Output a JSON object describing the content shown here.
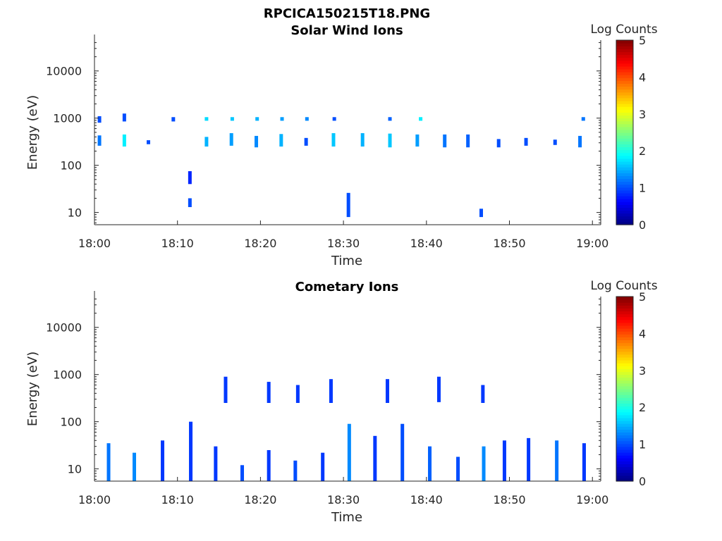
{
  "figure": {
    "title": "RPCICA150215T18.PNG"
  },
  "chart_data": [
    {
      "type": "heatmap",
      "title": "Solar Wind Ions",
      "xlabel": "Time",
      "ylabel": "Energy (eV)",
      "x_tick_labels": [
        "18:00",
        "18:10",
        "18:20",
        "18:30",
        "18:40",
        "18:50",
        "19:00"
      ],
      "y_tick_labels": [
        "10",
        "100",
        "1000",
        "10000"
      ],
      "y_scale": "log",
      "xlim_minutes": [
        0,
        61
      ],
      "ylim": [
        5.5,
        45000
      ],
      "colorbar": {
        "label": "Log Counts",
        "range": [
          0,
          5
        ],
        "ticks": [
          "0",
          "1",
          "2",
          "3",
          "4",
          "5"
        ],
        "colormap": "jet"
      },
      "series": [
        {
          "bands": [
            {
              "t": 0.6,
              "lo": 260,
              "hi": 430,
              "v": 1.2
            },
            {
              "t": 0.6,
              "lo": 800,
              "hi": 1100,
              "v": 1.0
            },
            {
              "t": 3.6,
              "lo": 250,
              "hi": 450,
              "v": 1.8
            },
            {
              "t": 3.6,
              "lo": 850,
              "hi": 1250,
              "v": 1.0
            },
            {
              "t": 6.5,
              "lo": 280,
              "hi": 340,
              "v": 1.0
            },
            {
              "t": 9.5,
              "lo": 850,
              "hi": 1050,
              "v": 1.0
            },
            {
              "t": 11.5,
              "lo": 13,
              "hi": 20,
              "v": 1.0
            },
            {
              "t": 11.5,
              "lo": 40,
              "hi": 75,
              "v": 0.8
            },
            {
              "t": 13.5,
              "lo": 250,
              "hi": 400,
              "v": 1.5
            },
            {
              "t": 13.5,
              "lo": 880,
              "hi": 1050,
              "v": 1.7
            },
            {
              "t": 16.5,
              "lo": 260,
              "hi": 480,
              "v": 1.4
            },
            {
              "t": 16.6,
              "lo": 880,
              "hi": 1050,
              "v": 1.6
            },
            {
              "t": 19.5,
              "lo": 240,
              "hi": 420,
              "v": 1.3
            },
            {
              "t": 19.6,
              "lo": 880,
              "hi": 1050,
              "v": 1.5
            },
            {
              "t": 22.5,
              "lo": 250,
              "hi": 460,
              "v": 1.5
            },
            {
              "t": 22.6,
              "lo": 880,
              "hi": 1050,
              "v": 1.4
            },
            {
              "t": 25.5,
              "lo": 260,
              "hi": 380,
              "v": 1.0
            },
            {
              "t": 25.6,
              "lo": 880,
              "hi": 1050,
              "v": 1.3
            },
            {
              "t": 28.8,
              "lo": 250,
              "hi": 480,
              "v": 1.6
            },
            {
              "t": 28.9,
              "lo": 880,
              "hi": 1050,
              "v": 1.0
            },
            {
              "t": 30.6,
              "lo": 8,
              "hi": 26,
              "v": 1.0
            },
            {
              "t": 32.3,
              "lo": 250,
              "hi": 480,
              "v": 1.5
            },
            {
              "t": 35.6,
              "lo": 240,
              "hi": 470,
              "v": 1.6
            },
            {
              "t": 35.6,
              "lo": 880,
              "hi": 1050,
              "v": 1.1
            },
            {
              "t": 38.9,
              "lo": 250,
              "hi": 450,
              "v": 1.4
            },
            {
              "t": 39.3,
              "lo": 880,
              "hi": 1050,
              "v": 1.8
            },
            {
              "t": 42.2,
              "lo": 240,
              "hi": 450,
              "v": 1.2
            },
            {
              "t": 45.0,
              "lo": 240,
              "hi": 450,
              "v": 1.1
            },
            {
              "t": 46.6,
              "lo": 8,
              "hi": 12,
              "v": 1.0
            },
            {
              "t": 48.7,
              "lo": 240,
              "hi": 360,
              "v": 1.0
            },
            {
              "t": 52.0,
              "lo": 260,
              "hi": 380,
              "v": 1.0
            },
            {
              "t": 55.5,
              "lo": 270,
              "hi": 350,
              "v": 1.0
            },
            {
              "t": 58.5,
              "lo": 240,
              "hi": 420,
              "v": 1.2
            },
            {
              "t": 58.9,
              "lo": 880,
              "hi": 1050,
              "v": 1.2
            }
          ]
        }
      ]
    },
    {
      "type": "heatmap",
      "title": "Cometary Ions",
      "xlabel": "Time",
      "ylabel": "Energy (eV)",
      "x_tick_labels": [
        "18:00",
        "18:10",
        "18:20",
        "18:30",
        "18:40",
        "18:50",
        "19:00"
      ],
      "y_tick_labels": [
        "10",
        "100",
        "1000",
        "10000"
      ],
      "y_scale": "log",
      "xlim_minutes": [
        0,
        61
      ],
      "ylim": [
        5.5,
        45000
      ],
      "colorbar": {
        "label": "Log Counts",
        "range": [
          0,
          5
        ],
        "ticks": [
          "0",
          "1",
          "2",
          "3",
          "4",
          "5"
        ],
        "colormap": "jet"
      },
      "series": [
        {
          "bands": [
            {
              "t": 1.7,
              "lo": 5.5,
              "hi": 35,
              "v": 1.2
            },
            {
              "t": 4.8,
              "lo": 5.5,
              "hi": 22,
              "v": 1.3
            },
            {
              "t": 8.2,
              "lo": 5.5,
              "hi": 40,
              "v": 0.9
            },
            {
              "t": 11.6,
              "lo": 5.5,
              "hi": 100,
              "v": 0.9
            },
            {
              "t": 14.6,
              "lo": 5.5,
              "hi": 30,
              "v": 0.9
            },
            {
              "t": 17.8,
              "lo": 5.5,
              "hi": 12,
              "v": 1.0
            },
            {
              "t": 21.0,
              "lo": 5.5,
              "hi": 25,
              "v": 0.9
            },
            {
              "t": 24.2,
              "lo": 5.5,
              "hi": 15,
              "v": 1.0
            },
            {
              "t": 27.5,
              "lo": 5.5,
              "hi": 22,
              "v": 0.9
            },
            {
              "t": 30.7,
              "lo": 5.5,
              "hi": 90,
              "v": 1.3
            },
            {
              "t": 33.8,
              "lo": 5.5,
              "hi": 50,
              "v": 0.9
            },
            {
              "t": 37.1,
              "lo": 5.5,
              "hi": 90,
              "v": 1.0
            },
            {
              "t": 40.4,
              "lo": 5.5,
              "hi": 30,
              "v": 1.1
            },
            {
              "t": 41.5,
              "lo": 260,
              "hi": 900,
              "v": 0.9
            },
            {
              "t": 43.8,
              "lo": 5.5,
              "hi": 18,
              "v": 1.0
            },
            {
              "t": 46.9,
              "lo": 5.5,
              "hi": 30,
              "v": 1.3
            },
            {
              "t": 49.4,
              "lo": 5.5,
              "hi": 40,
              "v": 0.9
            },
            {
              "t": 52.3,
              "lo": 5.5,
              "hi": 45,
              "v": 0.9
            },
            {
              "t": 55.7,
              "lo": 5.5,
              "hi": 40,
              "v": 1.2
            },
            {
              "t": 59.0,
              "lo": 5.5,
              "hi": 35,
              "v": 0.9
            },
            {
              "t": 35.3,
              "lo": 250,
              "hi": 800,
              "v": 0.9
            },
            {
              "t": 28.5,
              "lo": 250,
              "hi": 800,
              "v": 0.9
            },
            {
              "t": 46.8,
              "lo": 250,
              "hi": 600,
              "v": 0.9
            },
            {
              "t": 21.0,
              "lo": 250,
              "hi": 700,
              "v": 0.9
            },
            {
              "t": 24.5,
              "lo": 250,
              "hi": 600,
              "v": 0.9
            },
            {
              "t": 15.8,
              "lo": 250,
              "hi": 900,
              "v": 0.9
            }
          ]
        }
      ]
    }
  ]
}
